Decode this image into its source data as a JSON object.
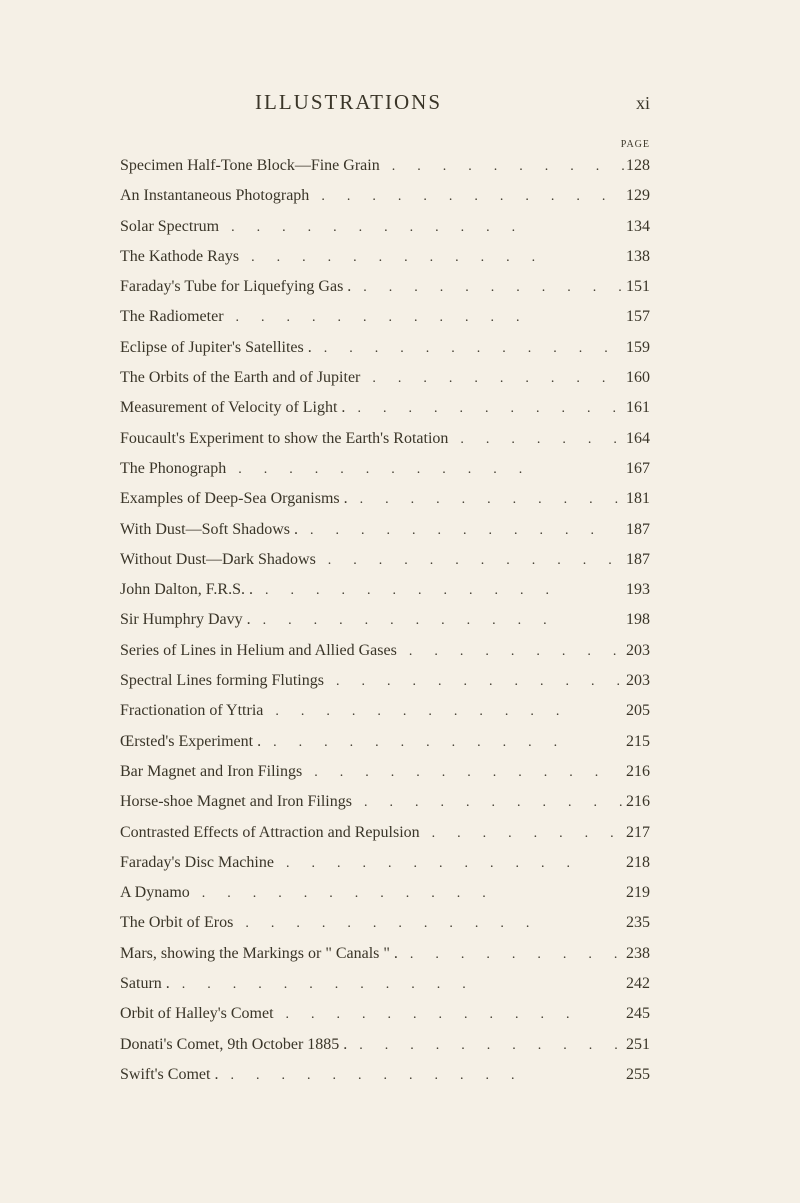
{
  "header": {
    "title": "ILLUSTRATIONS",
    "pageRoman": "xi",
    "pageLabel": "PAGE"
  },
  "styling": {
    "backgroundColor": "#f5f0e6",
    "textColor": "#3a3528",
    "titleFontSize": 21,
    "bodyFontSize": 16,
    "pageWidth": 800,
    "pageHeight": 1203
  },
  "entries": [
    {
      "title": "Specimen Half-Tone Block—Fine Grain",
      "page": "128"
    },
    {
      "title": "An Instantaneous Photograph",
      "page": "129"
    },
    {
      "title": "Solar Spectrum",
      "page": "134"
    },
    {
      "title": "The Kathode Rays",
      "page": "138"
    },
    {
      "title": "Faraday's Tube for Liquefying Gas .",
      "page": "151"
    },
    {
      "title": "The Radiometer",
      "page": "157"
    },
    {
      "title": "Eclipse of Jupiter's Satellites .",
      "page": "159"
    },
    {
      "title": "The Orbits of the Earth and of Jupiter",
      "page": "160"
    },
    {
      "title": "Measurement of Velocity of Light .",
      "page": "161"
    },
    {
      "title": "Foucault's Experiment to show the Earth's Rotation",
      "page": "164"
    },
    {
      "title": "The Phonograph",
      "page": "167"
    },
    {
      "title": "Examples of Deep-Sea Organisms .",
      "page": "181"
    },
    {
      "title": "With Dust—Soft Shadows .",
      "page": "187"
    },
    {
      "title": "Without Dust—Dark Shadows",
      "page": "187"
    },
    {
      "title": "John Dalton, F.R.S. .",
      "page": "193"
    },
    {
      "title": "Sir Humphry Davy .",
      "page": "198"
    },
    {
      "title": "Series of Lines in Helium and Allied Gases",
      "page": "203"
    },
    {
      "title": "Spectral Lines forming Flutings",
      "page": "203"
    },
    {
      "title": "Fractionation of Yttria",
      "page": "205"
    },
    {
      "title": "Œrsted's Experiment .",
      "page": "215"
    },
    {
      "title": "Bar Magnet and Iron Filings",
      "page": "216"
    },
    {
      "title": "Horse-shoe Magnet and Iron Filings",
      "page": "216"
    },
    {
      "title": "Contrasted Effects of Attraction and Repulsion",
      "page": "217"
    },
    {
      "title": "Faraday's Disc Machine",
      "page": "218"
    },
    {
      "title": "A Dynamo",
      "page": "219"
    },
    {
      "title": "The Orbit of Eros",
      "page": "235"
    },
    {
      "title": "Mars, showing the Markings or \" Canals \" .",
      "page": "238"
    },
    {
      "title": "Saturn .",
      "page": "242"
    },
    {
      "title": "Orbit of Halley's Comet",
      "page": "245"
    },
    {
      "title": "Donati's Comet, 9th October 1885 .",
      "page": "251"
    },
    {
      "title": "Swift's Comet .",
      "page": "255"
    }
  ]
}
